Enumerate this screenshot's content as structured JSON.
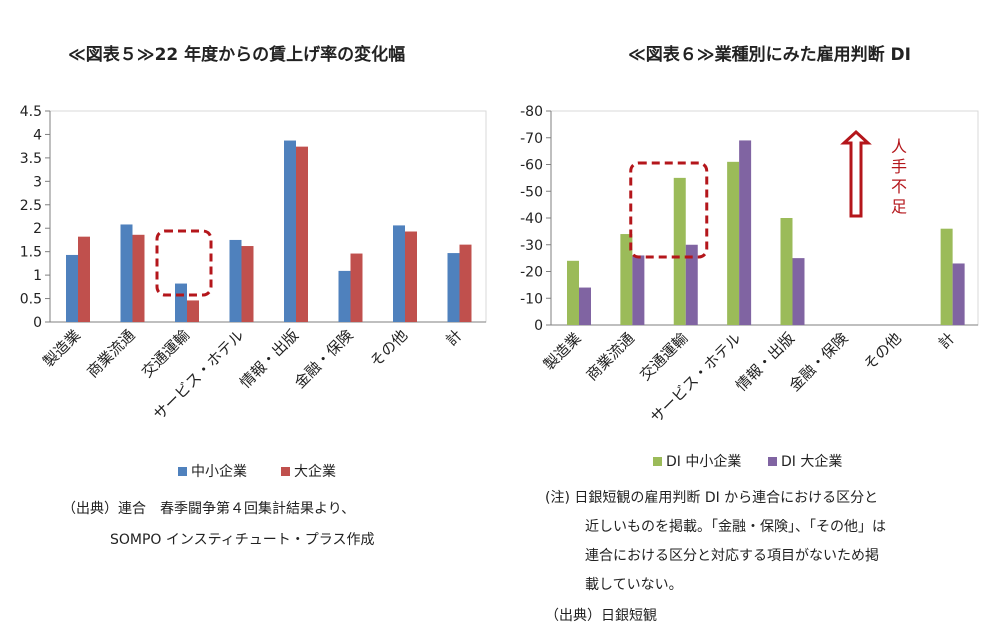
{
  "colors": {
    "blue": "#4f81bd",
    "red": "#c0504d",
    "green": "#9bbb59",
    "purple": "#8064a2",
    "highlight": "#b4161b",
    "grid": "#d9d9d9",
    "axis": "#7f7f7f"
  },
  "chart_data": [
    {
      "type": "bar",
      "title": "≪図表５≫22 年度からの賃上げ率の変化幅",
      "categories": [
        "製造業",
        "商業流通",
        "交通運輸",
        "サービス・ホテル",
        "情報・出版",
        "金融・保険",
        "その他",
        "計"
      ],
      "series": [
        {
          "name": "中小企業",
          "color": "#4f81bd",
          "values": [
            1.43,
            2.08,
            0.82,
            1.75,
            3.87,
            1.09,
            2.06,
            1.47
          ]
        },
        {
          "name": "大企業",
          "color": "#c0504d",
          "values": [
            1.82,
            1.86,
            0.46,
            1.62,
            3.74,
            1.46,
            1.93,
            1.65
          ]
        }
      ],
      "yticks": [
        "4.5",
        "4",
        "3.5",
        "3",
        "2.5",
        "2",
        "1.5",
        "1",
        "0.5",
        "0"
      ],
      "ylim": [
        0,
        4.5
      ],
      "grid": false,
      "legend": "bottom",
      "highlight_category": "交通運輸"
    },
    {
      "type": "bar",
      "title": "≪図表６≫業種別にみた雇用判断 DI",
      "categories": [
        "製造業",
        "商業流通",
        "交通運輸",
        "サービス・ホテル",
        "情報・出版",
        "金融・保険",
        "その他",
        "計"
      ],
      "series": [
        {
          "name": "DI  中小企業",
          "color": "#9bbb59",
          "values": [
            -24,
            -34,
            -55,
            -61,
            -40,
            null,
            null,
            -36
          ]
        },
        {
          "name": "DI  大企業",
          "color": "#8064a2",
          "values": [
            -14,
            -26,
            -30,
            -69,
            -25,
            null,
            null,
            -23
          ]
        }
      ],
      "yticks": [
        "-80",
        "-70",
        "-60",
        "-50",
        "-40",
        "-30",
        "-20",
        "-10",
        "0"
      ],
      "ylim": [
        -80,
        0
      ],
      "y_inverted": true,
      "grid": false,
      "legend": "bottom",
      "highlight_category": "交通運輸",
      "annotation": {
        "text": [
          "人",
          "手",
          "不",
          "足"
        ]
      }
    }
  ],
  "left_notes": {
    "line1": "（出典）連合　春季闘争第４回集計結果より、",
    "line2": "SOMPO インスティチュート・プラス作成"
  },
  "right_notes": {
    "line1": "(注) 日銀短観の雇用判断 DI から連合における区分と",
    "line2": "近しいものを掲載。「金融・保険」、「その他」は",
    "line3": "連合における区分と対応する項目がないため掲",
    "line4": "載していない。",
    "line5": "（出典）日銀短観"
  }
}
